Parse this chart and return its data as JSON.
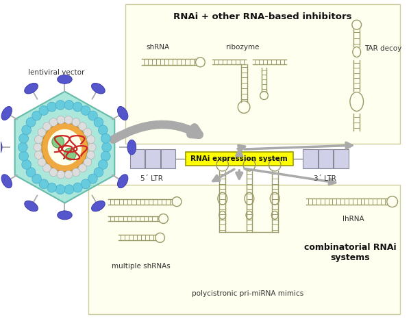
{
  "bg_color": "#ffffff",
  "box_color": "#fffff0",
  "box_edge_color": "#cccc99",
  "arrow_color": "#bbbbbb",
  "ltr_box_color": "#d0d0e8",
  "ltr_box_edge": "#888899",
  "rnai_box_color": "#ffff00",
  "rnai_box_edge": "#999900",
  "rna_color": "#999966",
  "title_top": "RNAi + other RNA-based inhibitors",
  "title_bottom_right": "combinatorial RNAi\nsystems",
  "label_shrna": "shRNA",
  "label_ribozyme": "ribozyme",
  "label_tar": "TAR decoy",
  "label_5ltr": "5´ LTR",
  "label_3ltr": "3´ LTR",
  "label_rnai": "RNAi expression system",
  "label_lentiviral": "lentiviral vector",
  "label_multiple_shrna": "multiple shRNAs",
  "label_lhrna": "lhRNA",
  "label_polycistronic": "polycistronic pri-miRNA mimics"
}
